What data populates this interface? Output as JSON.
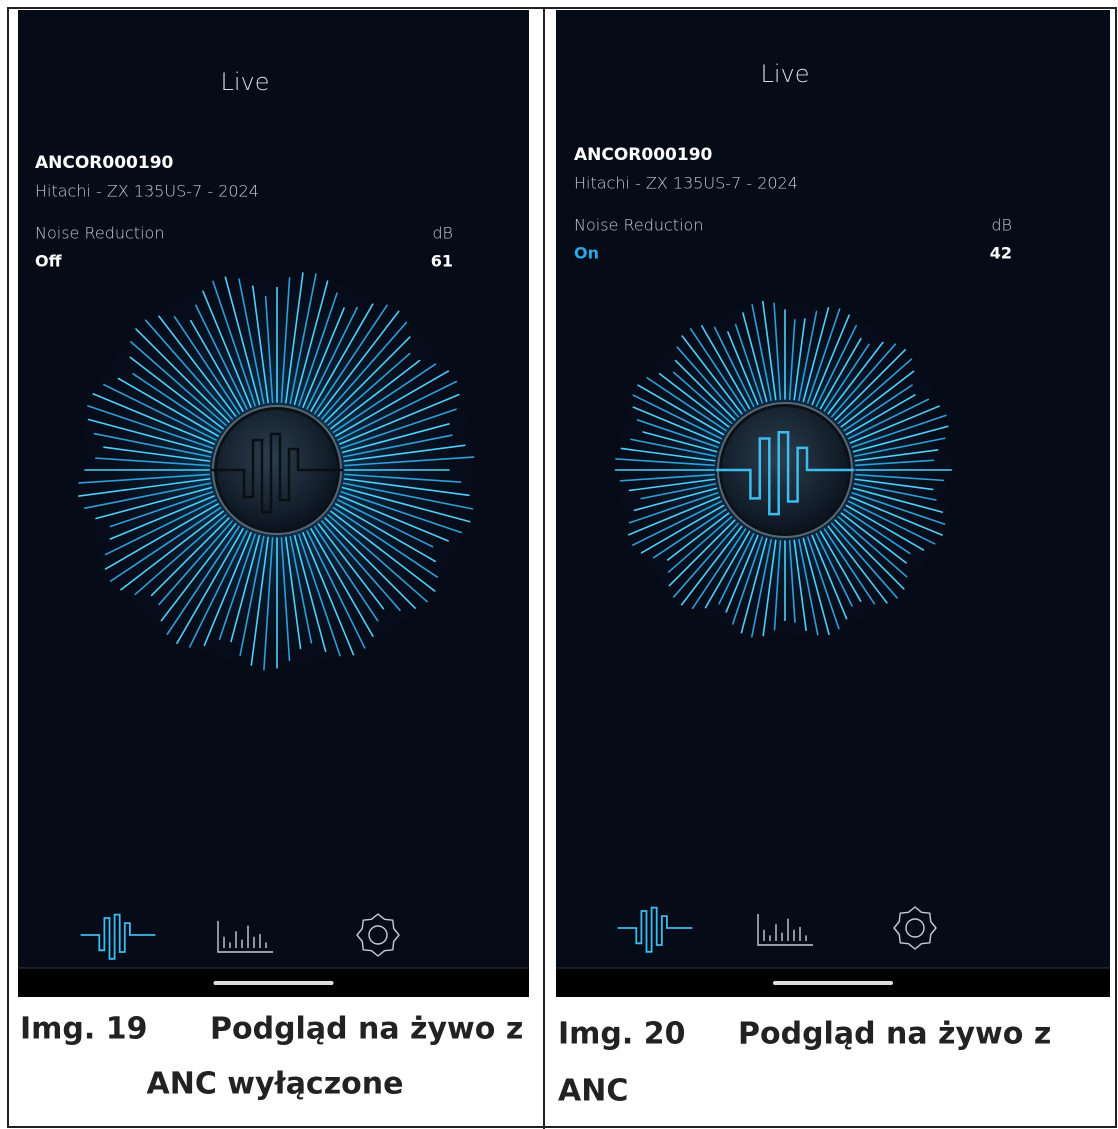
{
  "panels": [
    {
      "screen_title": "Live",
      "device_id": "ANCOR000190",
      "device_model": "Hitachi - ZX 135US-7 - 2024",
      "noise_label": "Noise Reduction",
      "noise_state": "Off",
      "db_label": "dB",
      "db_value": "61",
      "caption": {
        "number": "Img. 19",
        "line1": "Podgląd na żywo z",
        "line2": "ANC wyłączone"
      }
    },
    {
      "screen_title": "Live",
      "device_id": "ANCOR000190",
      "device_model": "Hitachi - ZX 135US-7 - 2024",
      "noise_label": "Noise Reduction",
      "noise_state": "On",
      "db_label": "dB",
      "db_value": "42",
      "caption": {
        "number": "Img. 20",
        "line1": "Podgląd na żywo z",
        "line2": "ANC"
      }
    }
  ]
}
